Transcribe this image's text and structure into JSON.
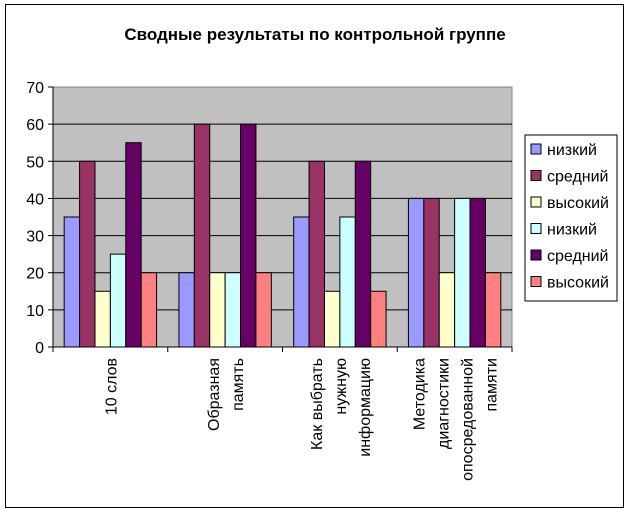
{
  "chart_data": {
    "type": "bar",
    "title": "Сводные результаты по контрольной группе",
    "xlabel": "",
    "ylabel": "",
    "ylim": [
      0,
      70
    ],
    "yticks": [
      0,
      10,
      20,
      30,
      40,
      50,
      60,
      70
    ],
    "grid": "horizontal",
    "legend_position": "right",
    "plot_background": "#c0c0c0",
    "categories": [
      [
        "10 слов"
      ],
      [
        "Образная",
        "память"
      ],
      [
        "Как выбрать",
        "нужную",
        "информацию"
      ],
      [
        "Методика",
        "диагностики",
        "опосредованной",
        "памяти"
      ]
    ],
    "series": [
      {
        "name": "низкий",
        "color": "#9999ff",
        "values": [
          35,
          20,
          35,
          40
        ]
      },
      {
        "name": "средний",
        "color": "#993366",
        "values": [
          50,
          60,
          50,
          40
        ]
      },
      {
        "name": "высокий",
        "color": "#ffffcc",
        "values": [
          15,
          20,
          15,
          20
        ]
      },
      {
        "name": "низкий",
        "color": "#ccffff",
        "values": [
          25,
          20,
          35,
          40
        ]
      },
      {
        "name": "средний",
        "color": "#660066",
        "values": [
          55,
          60,
          50,
          40
        ]
      },
      {
        "name": "высокий",
        "color": "#ff8080",
        "values": [
          20,
          20,
          15,
          20
        ]
      }
    ]
  }
}
